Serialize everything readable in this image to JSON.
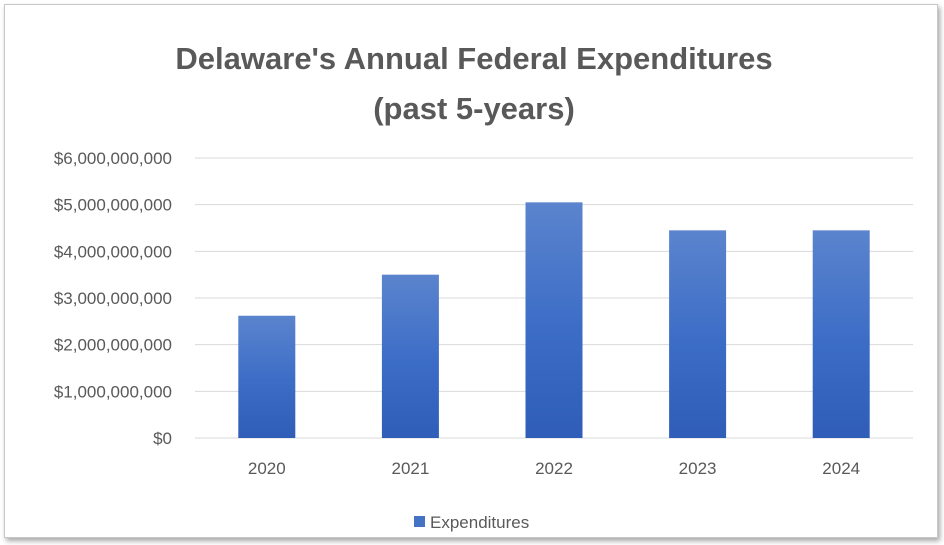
{
  "chart_data": {
    "type": "bar",
    "title": [
      "Delaware's Annual Federal Expenditures",
      "(past 5-years)"
    ],
    "categories": [
      "2020",
      "2021",
      "2022",
      "2023",
      "2024"
    ],
    "series": [
      {
        "name": "Expenditures",
        "color": "#4472c4",
        "values": [
          2620000000,
          3500000000,
          5050000000,
          4450000000,
          4450000000
        ]
      }
    ],
    "ylim": [
      0,
      6000000000
    ],
    "yticks": [
      0,
      1000000000,
      2000000000,
      3000000000,
      4000000000,
      5000000000,
      6000000000
    ],
    "ytick_labels": [
      "$0",
      "$1,000,000,000",
      "$2,000,000,000",
      "$3,000,000,000",
      "$4,000,000,000",
      "$5,000,000,000",
      "$6,000,000,000"
    ],
    "grid": true,
    "legend_position": "bottom"
  }
}
